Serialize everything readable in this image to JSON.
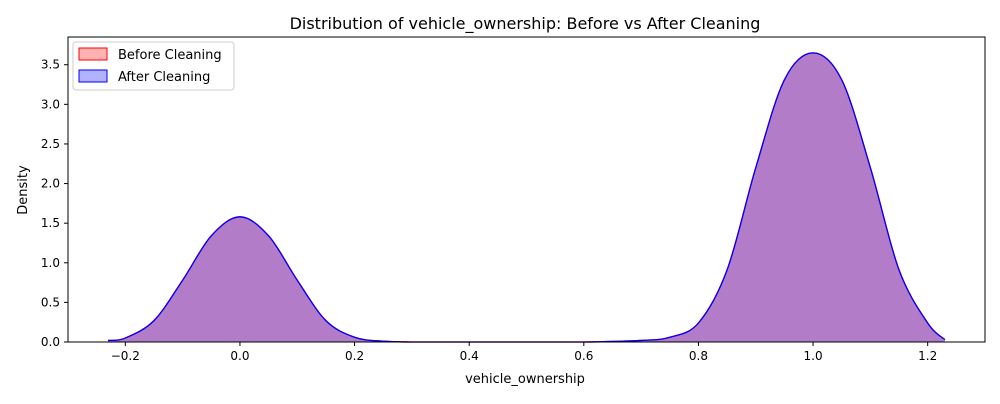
{
  "chart_data": {
    "type": "area",
    "title": "Distribution of vehicle_ownership: Before vs After Cleaning",
    "xlabel": "vehicle_ownership",
    "ylabel": "Density",
    "xlim": [
      -0.3,
      1.3
    ],
    "ylim": [
      0,
      3.85
    ],
    "x_ticks": [
      -0.2,
      0.0,
      0.2,
      0.4,
      0.6,
      0.8,
      1.0,
      1.2
    ],
    "y_ticks": [
      0.0,
      0.5,
      1.0,
      1.5,
      2.0,
      2.5,
      3.0,
      3.5
    ],
    "grid": false,
    "legend_position": "top-left",
    "series": [
      {
        "name": "Before Cleaning",
        "color": "#ff0000",
        "fill": "#ff0000",
        "x": [
          -0.23,
          -0.2,
          -0.15,
          -0.1,
          -0.05,
          0.0,
          0.05,
          0.1,
          0.15,
          0.2,
          0.25,
          0.3,
          0.4,
          0.5,
          0.6,
          0.7,
          0.75,
          0.8,
          0.85,
          0.9,
          0.95,
          1.0,
          1.05,
          1.1,
          1.15,
          1.2,
          1.23
        ],
        "values": [
          0.02,
          0.05,
          0.27,
          0.78,
          1.34,
          1.58,
          1.34,
          0.78,
          0.27,
          0.06,
          0.01,
          0.0,
          0.0,
          0.0,
          0.0,
          0.02,
          0.06,
          0.24,
          0.91,
          2.2,
          3.31,
          3.65,
          3.31,
          2.2,
          0.91,
          0.24,
          0.03
        ]
      },
      {
        "name": "After Cleaning",
        "color": "#0000ff",
        "fill": "#0000ff",
        "x": [
          -0.23,
          -0.2,
          -0.15,
          -0.1,
          -0.05,
          0.0,
          0.05,
          0.1,
          0.15,
          0.2,
          0.25,
          0.3,
          0.4,
          0.5,
          0.6,
          0.7,
          0.75,
          0.8,
          0.85,
          0.9,
          0.95,
          1.0,
          1.05,
          1.1,
          1.15,
          1.2,
          1.23
        ],
        "values": [
          0.02,
          0.05,
          0.27,
          0.78,
          1.34,
          1.58,
          1.34,
          0.78,
          0.27,
          0.06,
          0.01,
          0.0,
          0.0,
          0.0,
          0.0,
          0.02,
          0.06,
          0.24,
          0.91,
          2.2,
          3.31,
          3.65,
          3.31,
          2.2,
          0.91,
          0.24,
          0.03
        ]
      }
    ]
  }
}
